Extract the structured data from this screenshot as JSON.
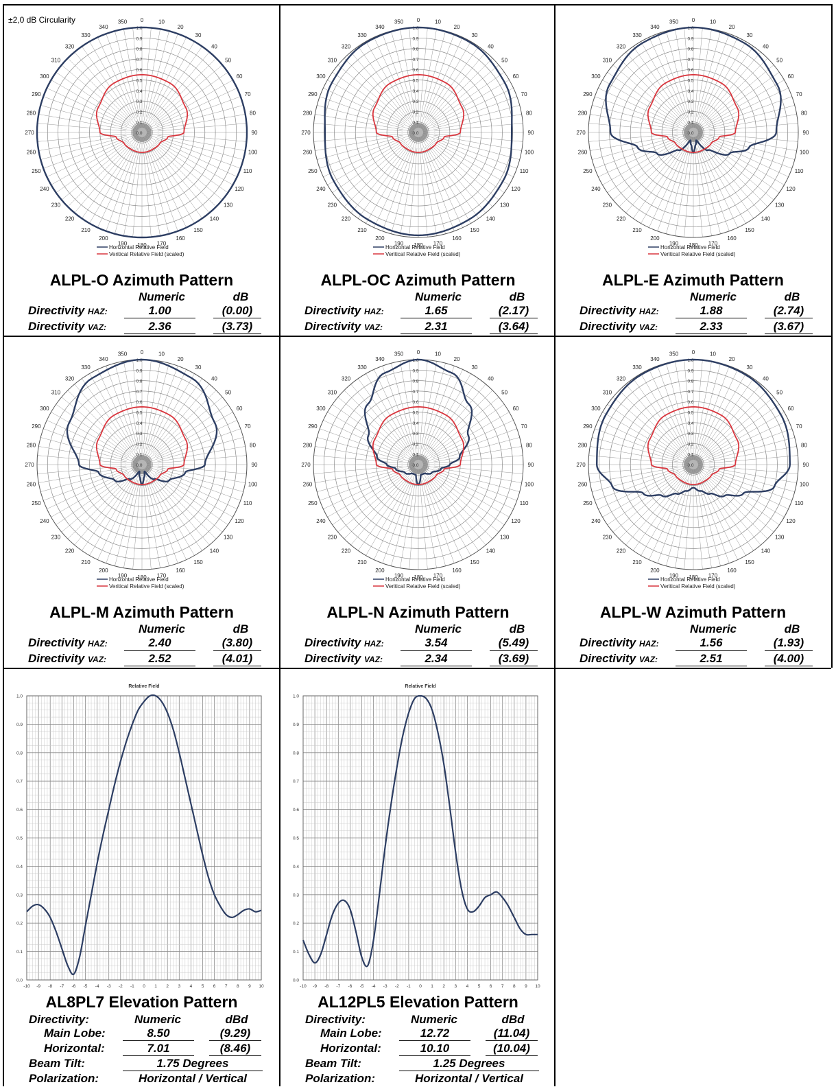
{
  "note": "±2,0 dB Circularity",
  "legend": {
    "horizontal": "Horizontal Relative Field",
    "vertical": "Veritical Relative Field (scaled)"
  },
  "colors": {
    "horizontal": "#2d3e63",
    "vertical": "#d9363e"
  },
  "headers": {
    "numeric": "Numeric",
    "db": "dB",
    "dbd": "dBd"
  },
  "labels": {
    "dir_h": "Directivity ",
    "dir_h_sub": "HAZ:",
    "dir_v": "Directivity ",
    "dir_v_sub": "VAZ:",
    "directivity": "Directivity:",
    "main_lobe": "Main Lobe:",
    "horizontal": "Horizontal:",
    "beam_tilt": "Beam Tilt:",
    "polarization": "Polarization:"
  },
  "azimuth_patterns": [
    {
      "title": "ALPL-O Azimuth Pattern",
      "haz": "1.00",
      "haz_db": "(0.00)",
      "vaz": "2.36",
      "vaz_db": "(3.73)"
    },
    {
      "title": "ALPL-OC Azimuth Pattern",
      "haz": "1.65",
      "haz_db": "(2.17)",
      "vaz": "2.31",
      "vaz_db": "(3.64)"
    },
    {
      "title": "ALPL-E Azimuth Pattern",
      "haz": "1.88",
      "haz_db": "(2.74)",
      "vaz": "2.33",
      "vaz_db": "(3.67)"
    },
    {
      "title": "ALPL-M Azimuth Pattern",
      "haz": "2.40",
      "haz_db": "(3.80)",
      "vaz": "2.52",
      "vaz_db": "(4.01)"
    },
    {
      "title": "ALPL-N Azimuth Pattern",
      "haz": "3.54",
      "haz_db": "(5.49)",
      "vaz": "2.34",
      "vaz_db": "(3.69)"
    },
    {
      "title": "ALPL-W Azimuth Pattern",
      "haz": "1.56",
      "haz_db": "(1.93)",
      "vaz": "2.51",
      "vaz_db": "(4.00)"
    }
  ],
  "elevation_patterns": [
    {
      "title": "AL8PL7 Elevation Pattern",
      "main": "8.50",
      "main_db": "(9.29)",
      "horiz": "7.01",
      "horiz_db": "(8.46)",
      "tilt": "1.75 Degrees",
      "pol": "Horizontal / Vertical"
    },
    {
      "title": "AL12PL5 Elevation Pattern",
      "main": "12.72",
      "main_db": "(11.04)",
      "horiz": "10.10",
      "horiz_db": "(10.04)",
      "tilt": "1.25 Degrees",
      "pol": "Horizontal / Vertical"
    }
  ],
  "chart_data": [
    {
      "type": "polar",
      "title": "ALPL-O Azimuth Pattern",
      "angle_ticks": [
        0,
        10,
        20,
        30,
        40,
        50,
        60,
        70,
        80,
        90,
        100,
        110,
        120,
        130,
        140,
        150,
        160,
        170,
        180,
        190,
        200,
        210,
        220,
        230,
        240,
        250,
        260,
        270,
        280,
        290,
        300,
        310,
        320,
        330,
        340,
        350
      ],
      "radial_ticks": [
        "0.0",
        "0.1",
        "0.2",
        "0.3",
        "0.4",
        "0.5",
        "0.6",
        "0.7",
        "0.8",
        "0.9",
        "1.0"
      ],
      "series": [
        {
          "name": "Horizontal Relative Field",
          "theta": [
            0,
            30,
            60,
            90,
            120,
            150,
            180,
            210,
            240,
            270,
            300,
            330
          ],
          "r": [
            1.0,
            1.0,
            1.0,
            1.0,
            1.0,
            1.0,
            1.0,
            1.0,
            1.0,
            1.0,
            1.0,
            1.0
          ]
        },
        {
          "name": "Veritical Relative Field (scaled)",
          "theta": [
            0,
            30,
            60,
            90,
            100,
            120,
            150,
            180,
            210,
            240,
            260,
            270,
            300,
            330
          ],
          "r": [
            0.55,
            0.54,
            0.48,
            0.4,
            0.25,
            0.2,
            0.19,
            0.19,
            0.19,
            0.2,
            0.25,
            0.4,
            0.48,
            0.54
          ]
        }
      ]
    },
    {
      "type": "polar",
      "title": "ALPL-OC Azimuth Pattern",
      "angle_ticks": [
        0,
        10,
        20,
        30,
        40,
        50,
        60,
        70,
        80,
        90,
        100,
        110,
        120,
        130,
        140,
        150,
        160,
        170,
        180,
        190,
        200,
        210,
        220,
        230,
        240,
        250,
        260,
        270,
        280,
        290,
        300,
        310,
        320,
        330,
        340,
        350
      ],
      "radial_ticks": [
        "0.0",
        "0.1",
        "0.2",
        "0.3",
        "0.4",
        "0.5",
        "0.6",
        "0.7",
        "0.8",
        "0.9",
        "1.0"
      ],
      "series": [
        {
          "name": "Horizontal Relative Field",
          "theta": [
            0,
            30,
            60,
            90,
            120,
            150,
            180,
            210,
            240,
            270,
            300,
            330
          ],
          "r": [
            1.0,
            0.99,
            0.95,
            0.89,
            0.93,
            0.96,
            0.98,
            0.96,
            0.93,
            0.89,
            0.95,
            0.99
          ]
        },
        {
          "name": "Veritical Relative Field (scaled)",
          "theta": [
            0,
            30,
            60,
            90,
            100,
            120,
            150,
            180,
            210,
            240,
            260,
            270,
            300,
            330
          ],
          "r": [
            0.55,
            0.54,
            0.48,
            0.4,
            0.25,
            0.2,
            0.19,
            0.19,
            0.19,
            0.2,
            0.25,
            0.4,
            0.48,
            0.54
          ]
        }
      ]
    },
    {
      "type": "polar",
      "title": "ALPL-E Azimuth Pattern",
      "angle_ticks": [
        0,
        10,
        20,
        30,
        40,
        50,
        60,
        70,
        80,
        90,
        100,
        110,
        120,
        130,
        140,
        150,
        160,
        170,
        180,
        190,
        200,
        210,
        220,
        230,
        240,
        250,
        260,
        270,
        280,
        290,
        300,
        310,
        320,
        330,
        340,
        350
      ],
      "radial_ticks": [
        "0.0",
        "0.1",
        "0.2",
        "0.3",
        "0.4",
        "0.5",
        "0.6",
        "0.7",
        "0.8",
        "0.9",
        "1.0"
      ],
      "series": [
        {
          "name": "Horizontal Relative Field",
          "theta": [
            0,
            30,
            60,
            90,
            105,
            120,
            140,
            160,
            170,
            180,
            190,
            200,
            220,
            240,
            255,
            270,
            300,
            330
          ],
          "r": [
            1.0,
            0.98,
            0.92,
            0.79,
            0.55,
            0.4,
            0.22,
            0.08,
            0.12,
            0.19,
            0.12,
            0.08,
            0.22,
            0.4,
            0.55,
            0.79,
            0.92,
            0.98
          ]
        },
        {
          "name": "Veritical Relative Field (scaled)",
          "theta": [
            0,
            30,
            60,
            90,
            100,
            120,
            150,
            180,
            210,
            240,
            260,
            270,
            300,
            330
          ],
          "r": [
            0.55,
            0.54,
            0.48,
            0.4,
            0.25,
            0.2,
            0.19,
            0.19,
            0.19,
            0.2,
            0.25,
            0.4,
            0.48,
            0.54
          ]
        }
      ]
    },
    {
      "type": "polar",
      "title": "ALPL-M Azimuth Pattern",
      "angle_ticks": [
        0,
        10,
        20,
        30,
        40,
        50,
        60,
        70,
        80,
        90,
        100,
        110,
        120,
        130,
        140,
        150,
        160,
        170,
        180,
        190,
        200,
        210,
        220,
        230,
        240,
        250,
        260,
        270,
        280,
        290,
        300,
        310,
        320,
        330,
        340,
        350
      ],
      "radial_ticks": [
        "0.0",
        "0.1",
        "0.2",
        "0.3",
        "0.4",
        "0.5",
        "0.6",
        "0.7",
        "0.8",
        "0.9",
        "1.0"
      ],
      "series": [
        {
          "name": "Horizontal Relative Field",
          "theta": [
            0,
            30,
            60,
            90,
            100,
            120,
            140,
            160,
            170,
            180,
            190,
            200,
            220,
            240,
            260,
            270,
            300,
            330
          ],
          "r": [
            1.0,
            0.95,
            0.8,
            0.6,
            0.42,
            0.3,
            0.18,
            0.07,
            0.12,
            0.19,
            0.12,
            0.07,
            0.18,
            0.3,
            0.42,
            0.6,
            0.8,
            0.95
          ]
        },
        {
          "name": "Veritical Relative Field (scaled)",
          "theta": [
            0,
            30,
            60,
            90,
            100,
            120,
            150,
            180,
            210,
            240,
            260,
            270,
            300,
            330
          ],
          "r": [
            0.55,
            0.54,
            0.48,
            0.4,
            0.25,
            0.2,
            0.19,
            0.19,
            0.19,
            0.2,
            0.25,
            0.4,
            0.48,
            0.54
          ]
        }
      ]
    },
    {
      "type": "polar",
      "title": "ALPL-N Azimuth Pattern",
      "angle_ticks": [
        0,
        10,
        20,
        30,
        40,
        50,
        60,
        70,
        80,
        90,
        100,
        110,
        120,
        130,
        140,
        150,
        160,
        170,
        180,
        190,
        200,
        210,
        220,
        230,
        240,
        250,
        260,
        270,
        280,
        290,
        300,
        310,
        320,
        330,
        340,
        350
      ],
      "radial_ticks": [
        "0.0",
        "0.1",
        "0.2",
        "0.3",
        "0.4",
        "0.5",
        "0.6",
        "0.7",
        "0.8",
        "0.9",
        "1.0"
      ],
      "series": [
        {
          "name": "Horizontal Relative Field",
          "theta": [
            0,
            20,
            40,
            60,
            80,
            90,
            100,
            120,
            150,
            165,
            180,
            195,
            210,
            240,
            260,
            270,
            280,
            300,
            320,
            340
          ],
          "r": [
            1.0,
            0.93,
            0.75,
            0.55,
            0.4,
            0.3,
            0.22,
            0.15,
            0.1,
            0.1,
            0.19,
            0.1,
            0.1,
            0.15,
            0.22,
            0.3,
            0.4,
            0.55,
            0.75,
            0.93
          ]
        },
        {
          "name": "Veritical Relative Field (scaled)",
          "theta": [
            0,
            30,
            60,
            90,
            100,
            120,
            150,
            180,
            210,
            240,
            260,
            270,
            300,
            330
          ],
          "r": [
            0.55,
            0.54,
            0.48,
            0.4,
            0.25,
            0.2,
            0.19,
            0.19,
            0.19,
            0.2,
            0.25,
            0.4,
            0.48,
            0.54
          ]
        }
      ]
    },
    {
      "type": "polar",
      "title": "ALPL-W Azimuth Pattern",
      "angle_ticks": [
        0,
        10,
        20,
        30,
        40,
        50,
        60,
        70,
        80,
        90,
        100,
        110,
        120,
        130,
        140,
        150,
        160,
        170,
        180,
        190,
        200,
        210,
        220,
        230,
        240,
        250,
        260,
        270,
        280,
        290,
        300,
        310,
        320,
        330,
        340,
        350
      ],
      "radial_ticks": [
        "0.0",
        "0.1",
        "0.2",
        "0.3",
        "0.4",
        "0.5",
        "0.6",
        "0.7",
        "0.8",
        "0.9",
        "1.0"
      ],
      "series": [
        {
          "name": "Horizontal Relative Field",
          "theta": [
            0,
            30,
            60,
            90,
            105,
            120,
            135,
            150,
            165,
            180,
            195,
            210,
            225,
            240,
            255,
            270,
            300,
            330
          ],
          "r": [
            1.0,
            0.99,
            0.96,
            0.92,
            0.8,
            0.55,
            0.42,
            0.32,
            0.26,
            0.22,
            0.26,
            0.32,
            0.42,
            0.55,
            0.8,
            0.92,
            0.96,
            0.99
          ]
        },
        {
          "name": "Veritical Relative Field (scaled)",
          "theta": [
            0,
            30,
            60,
            90,
            100,
            120,
            150,
            180,
            210,
            240,
            260,
            270,
            300,
            330
          ],
          "r": [
            0.55,
            0.54,
            0.48,
            0.4,
            0.25,
            0.2,
            0.19,
            0.19,
            0.19,
            0.2,
            0.25,
            0.4,
            0.48,
            0.54
          ]
        }
      ]
    },
    {
      "type": "line",
      "title": "AL8PL7 Elevation Pattern",
      "chart_label": "Relative Field",
      "xlim": [
        -10,
        10
      ],
      "ylim": [
        0,
        1.0
      ],
      "xticks": [
        "-10",
        "-9",
        "-8",
        "-7",
        "-6",
        "-5",
        "-4",
        "-3",
        "-2",
        "-1",
        "0",
        "1",
        "2",
        "3",
        "4",
        "5",
        "6",
        "7",
        "8",
        "9",
        "10"
      ],
      "yticks": [
        "0.0",
        "0.1",
        "0.2",
        "0.3",
        "0.4",
        "0.5",
        "0.6",
        "0.7",
        "0.8",
        "0.9",
        "1.0"
      ],
      "x": [
        -10,
        -9.5,
        -9,
        -8.5,
        -8,
        -7.5,
        -7,
        -6.5,
        -6,
        -5.5,
        -5,
        -4.5,
        -4,
        -3.5,
        -3,
        -2.5,
        -2,
        -1.5,
        -1,
        -0.5,
        0,
        0.5,
        1,
        1.5,
        2,
        2.5,
        3,
        3.5,
        4,
        4.5,
        5,
        5.5,
        6,
        6.5,
        7,
        7.5,
        8,
        8.5,
        9,
        9.5,
        10
      ],
      "y": [
        0.24,
        0.26,
        0.265,
        0.25,
        0.22,
        0.17,
        0.11,
        0.05,
        0.02,
        0.08,
        0.19,
        0.3,
        0.41,
        0.51,
        0.6,
        0.69,
        0.77,
        0.84,
        0.9,
        0.95,
        0.98,
        1.0,
        1.0,
        0.98,
        0.94,
        0.88,
        0.8,
        0.71,
        0.62,
        0.53,
        0.44,
        0.36,
        0.3,
        0.26,
        0.23,
        0.22,
        0.23,
        0.245,
        0.25,
        0.24,
        0.245
      ]
    },
    {
      "type": "line",
      "title": "AL12PL5 Elevation Pattern",
      "chart_label": "Relative Field",
      "xlim": [
        -10,
        10
      ],
      "ylim": [
        0,
        1.0
      ],
      "xticks": [
        "-10",
        "-9",
        "-8",
        "-7",
        "-6",
        "-5",
        "-4",
        "-3",
        "-2",
        "-1",
        "0",
        "1",
        "2",
        "3",
        "4",
        "5",
        "6",
        "7",
        "8",
        "9",
        "10"
      ],
      "yticks": [
        "0.0",
        "0.1",
        "0.2",
        "0.3",
        "0.4",
        "0.5",
        "0.6",
        "0.7",
        "0.8",
        "0.9",
        "1.0"
      ],
      "x": [
        -10,
        -9.5,
        -9,
        -8.5,
        -8,
        -7.5,
        -7,
        -6.5,
        -6,
        -5.5,
        -5,
        -4.5,
        -4,
        -3.5,
        -3,
        -2.5,
        -2,
        -1.5,
        -1,
        -0.5,
        0,
        0.5,
        1,
        1.5,
        2,
        2.5,
        3,
        3.5,
        4,
        4.5,
        5,
        5.5,
        6,
        6.5,
        7,
        7.5,
        8,
        8.5,
        9,
        9.5,
        10
      ],
      "y": [
        0.14,
        0.09,
        0.06,
        0.09,
        0.16,
        0.23,
        0.27,
        0.28,
        0.25,
        0.17,
        0.08,
        0.05,
        0.14,
        0.3,
        0.47,
        0.62,
        0.75,
        0.86,
        0.94,
        0.99,
        1.0,
        0.99,
        0.95,
        0.87,
        0.76,
        0.61,
        0.45,
        0.32,
        0.25,
        0.24,
        0.26,
        0.29,
        0.3,
        0.31,
        0.29,
        0.26,
        0.22,
        0.18,
        0.16,
        0.16,
        0.16
      ]
    }
  ]
}
